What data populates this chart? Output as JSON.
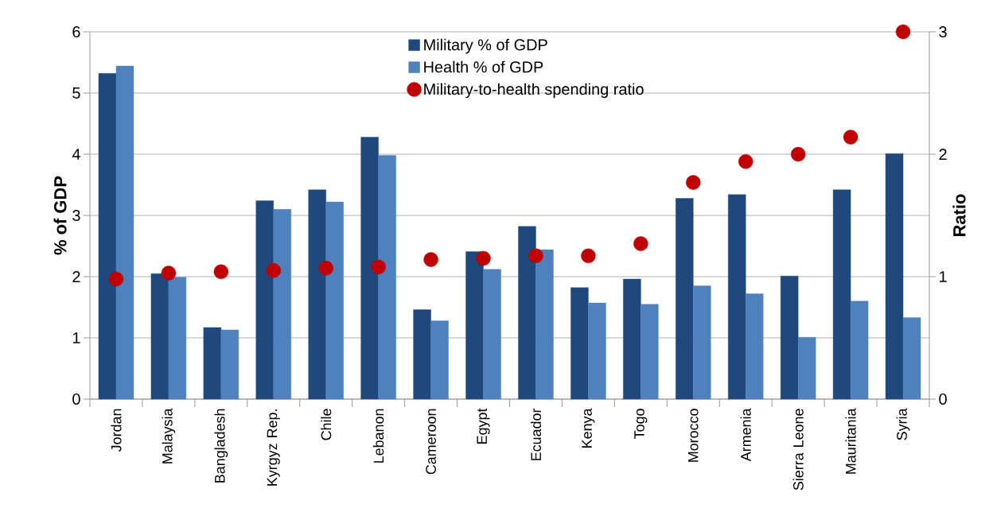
{
  "chart_data": {
    "type": "bar",
    "ylabel": "% of GDP",
    "y2label": "Ratio",
    "categories": [
      "Jordan",
      "Malaysia",
      "Bangladesh",
      "Kyrgyz Rep.",
      "Chile",
      "Lebanon",
      "Cameroon",
      "Egypt",
      "Ecuador",
      "Kenya",
      "Togo",
      "Morocco",
      "Armenia",
      "Sierra Leone",
      "Mauritania",
      "Syria"
    ],
    "series": [
      {
        "name": "Military % of GDP",
        "color": "#1f497d",
        "values": [
          5.32,
          2.05,
          1.17,
          3.24,
          3.42,
          4.28,
          1.46,
          2.41,
          2.82,
          1.82,
          1.96,
          3.28,
          3.34,
          2.01,
          3.42,
          4.01
        ]
      },
      {
        "name": "Health % of GDP",
        "color": "#4f81bd",
        "values": [
          5.44,
          1.99,
          1.13,
          3.1,
          3.22,
          3.98,
          1.28,
          2.12,
          2.44,
          1.57,
          1.55,
          1.85,
          1.72,
          1.01,
          1.6,
          1.33
        ]
      },
      {
        "name": "Military-to-health spending ratio",
        "type": "scatter",
        "axis": "y2",
        "color": "#c00000",
        "values": [
          0.98,
          1.03,
          1.04,
          1.05,
          1.07,
          1.08,
          1.14,
          1.15,
          1.17,
          1.17,
          1.27,
          1.77,
          1.94,
          2.0,
          2.14,
          3.0
        ]
      }
    ],
    "ylim": [
      0,
      6
    ],
    "yticks": [
      0,
      1,
      2,
      3,
      4,
      5,
      6
    ],
    "y2lim": [
      0,
      3
    ],
    "y2ticks": [
      0,
      1,
      2,
      3
    ],
    "grid": "y",
    "legend": "top"
  }
}
